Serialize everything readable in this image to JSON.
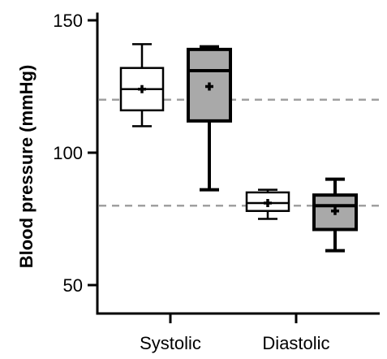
{
  "chart_data": {
    "type": "box",
    "title": "",
    "xlabel": "",
    "ylabel": "Blood pressure (mmHg)",
    "ylim": [
      42,
      152
    ],
    "yticks": [
      50,
      100,
      150
    ],
    "categories": [
      "Systolic",
      "Diastolic"
    ],
    "reference_lines": [
      120,
      80
    ],
    "series": [
      {
        "fill": "#ffffff",
        "boxes": [
          {
            "category": "Systolic",
            "min": 110,
            "q1": 116,
            "median": 124,
            "q3": 132,
            "max": 141,
            "mean": 124
          },
          {
            "category": "Diastolic",
            "min": 75,
            "q1": 78,
            "median": 81,
            "q3": 85,
            "max": 86,
            "mean": 81
          }
        ]
      },
      {
        "fill": "#a9a9a9",
        "boxes": [
          {
            "category": "Systolic",
            "min": 86,
            "q1": 112,
            "median": 131,
            "q3": 139,
            "max": 140,
            "mean": 125
          },
          {
            "category": "Diastolic",
            "min": 63,
            "q1": 71,
            "median": 80,
            "q3": 84,
            "max": 90,
            "mean": 78
          }
        ]
      }
    ],
    "colors": {
      "axis": "#000000",
      "reference_line": "#a0a0a0"
    }
  }
}
